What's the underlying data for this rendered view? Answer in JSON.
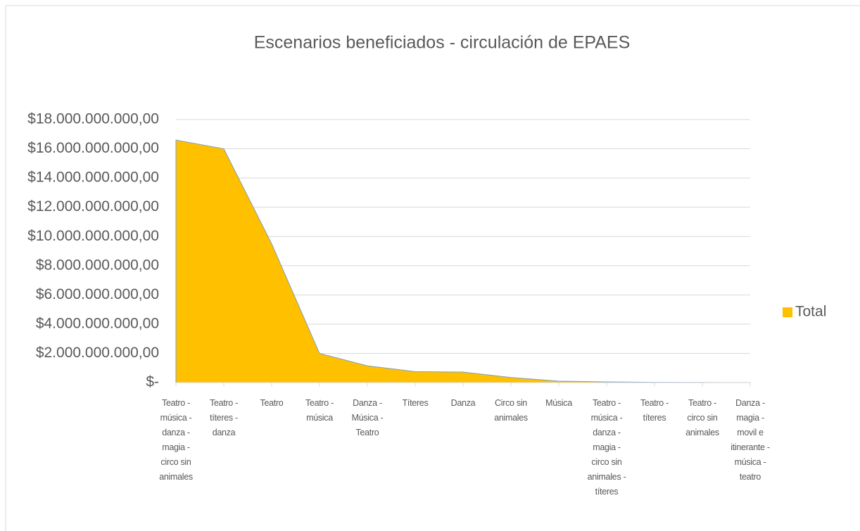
{
  "chart_data": {
    "type": "area",
    "title": "Escenarios beneficiados - circulación de EPAES",
    "categories": [
      "Teatro - música - danza - magia - circo sin animales",
      "Teatro - títeres - danza",
      "Teatro",
      "Teatro - música",
      "Danza - Música - Teatro",
      "Títeres",
      "Danza",
      "Circo sin animales",
      "Música",
      "Teatro - música - danza - magia - circo sin animales - títeres",
      "Teatro - títeres",
      "Teatro - circo sin animales",
      "Danza - magia - movil e itinerante - música - teatro"
    ],
    "series": [
      {
        "name": "Total",
        "color": "#ffc000",
        "values": [
          16600000000,
          16000000000,
          9500000000,
          2000000000,
          1150000000,
          750000000,
          720000000,
          350000000,
          100000000,
          50000000,
          20000000,
          10000000,
          5000000
        ]
      }
    ],
    "ylim": [
      0,
      18000000000
    ],
    "yticks": [
      {
        "value": 0,
        "label": "$-"
      },
      {
        "value": 2000000000,
        "label": "$2.000.000.000,00"
      },
      {
        "value": 4000000000,
        "label": "$4.000.000.000,00"
      },
      {
        "value": 6000000000,
        "label": "$6.000.000.000,00"
      },
      {
        "value": 8000000000,
        "label": "$8.000.000.000,00"
      },
      {
        "value": 10000000000,
        "label": "$10.000.000.000,00"
      },
      {
        "value": 12000000000,
        "label": "$12.000.000.000,00"
      },
      {
        "value": 14000000000,
        "label": "$14.000.000.000,00"
      },
      {
        "value": 16000000000,
        "label": "$16.000.000.000,00"
      },
      {
        "value": 18000000000,
        "label": "$18.000.000.000,00"
      }
    ],
    "grid": true,
    "legend": "right"
  }
}
